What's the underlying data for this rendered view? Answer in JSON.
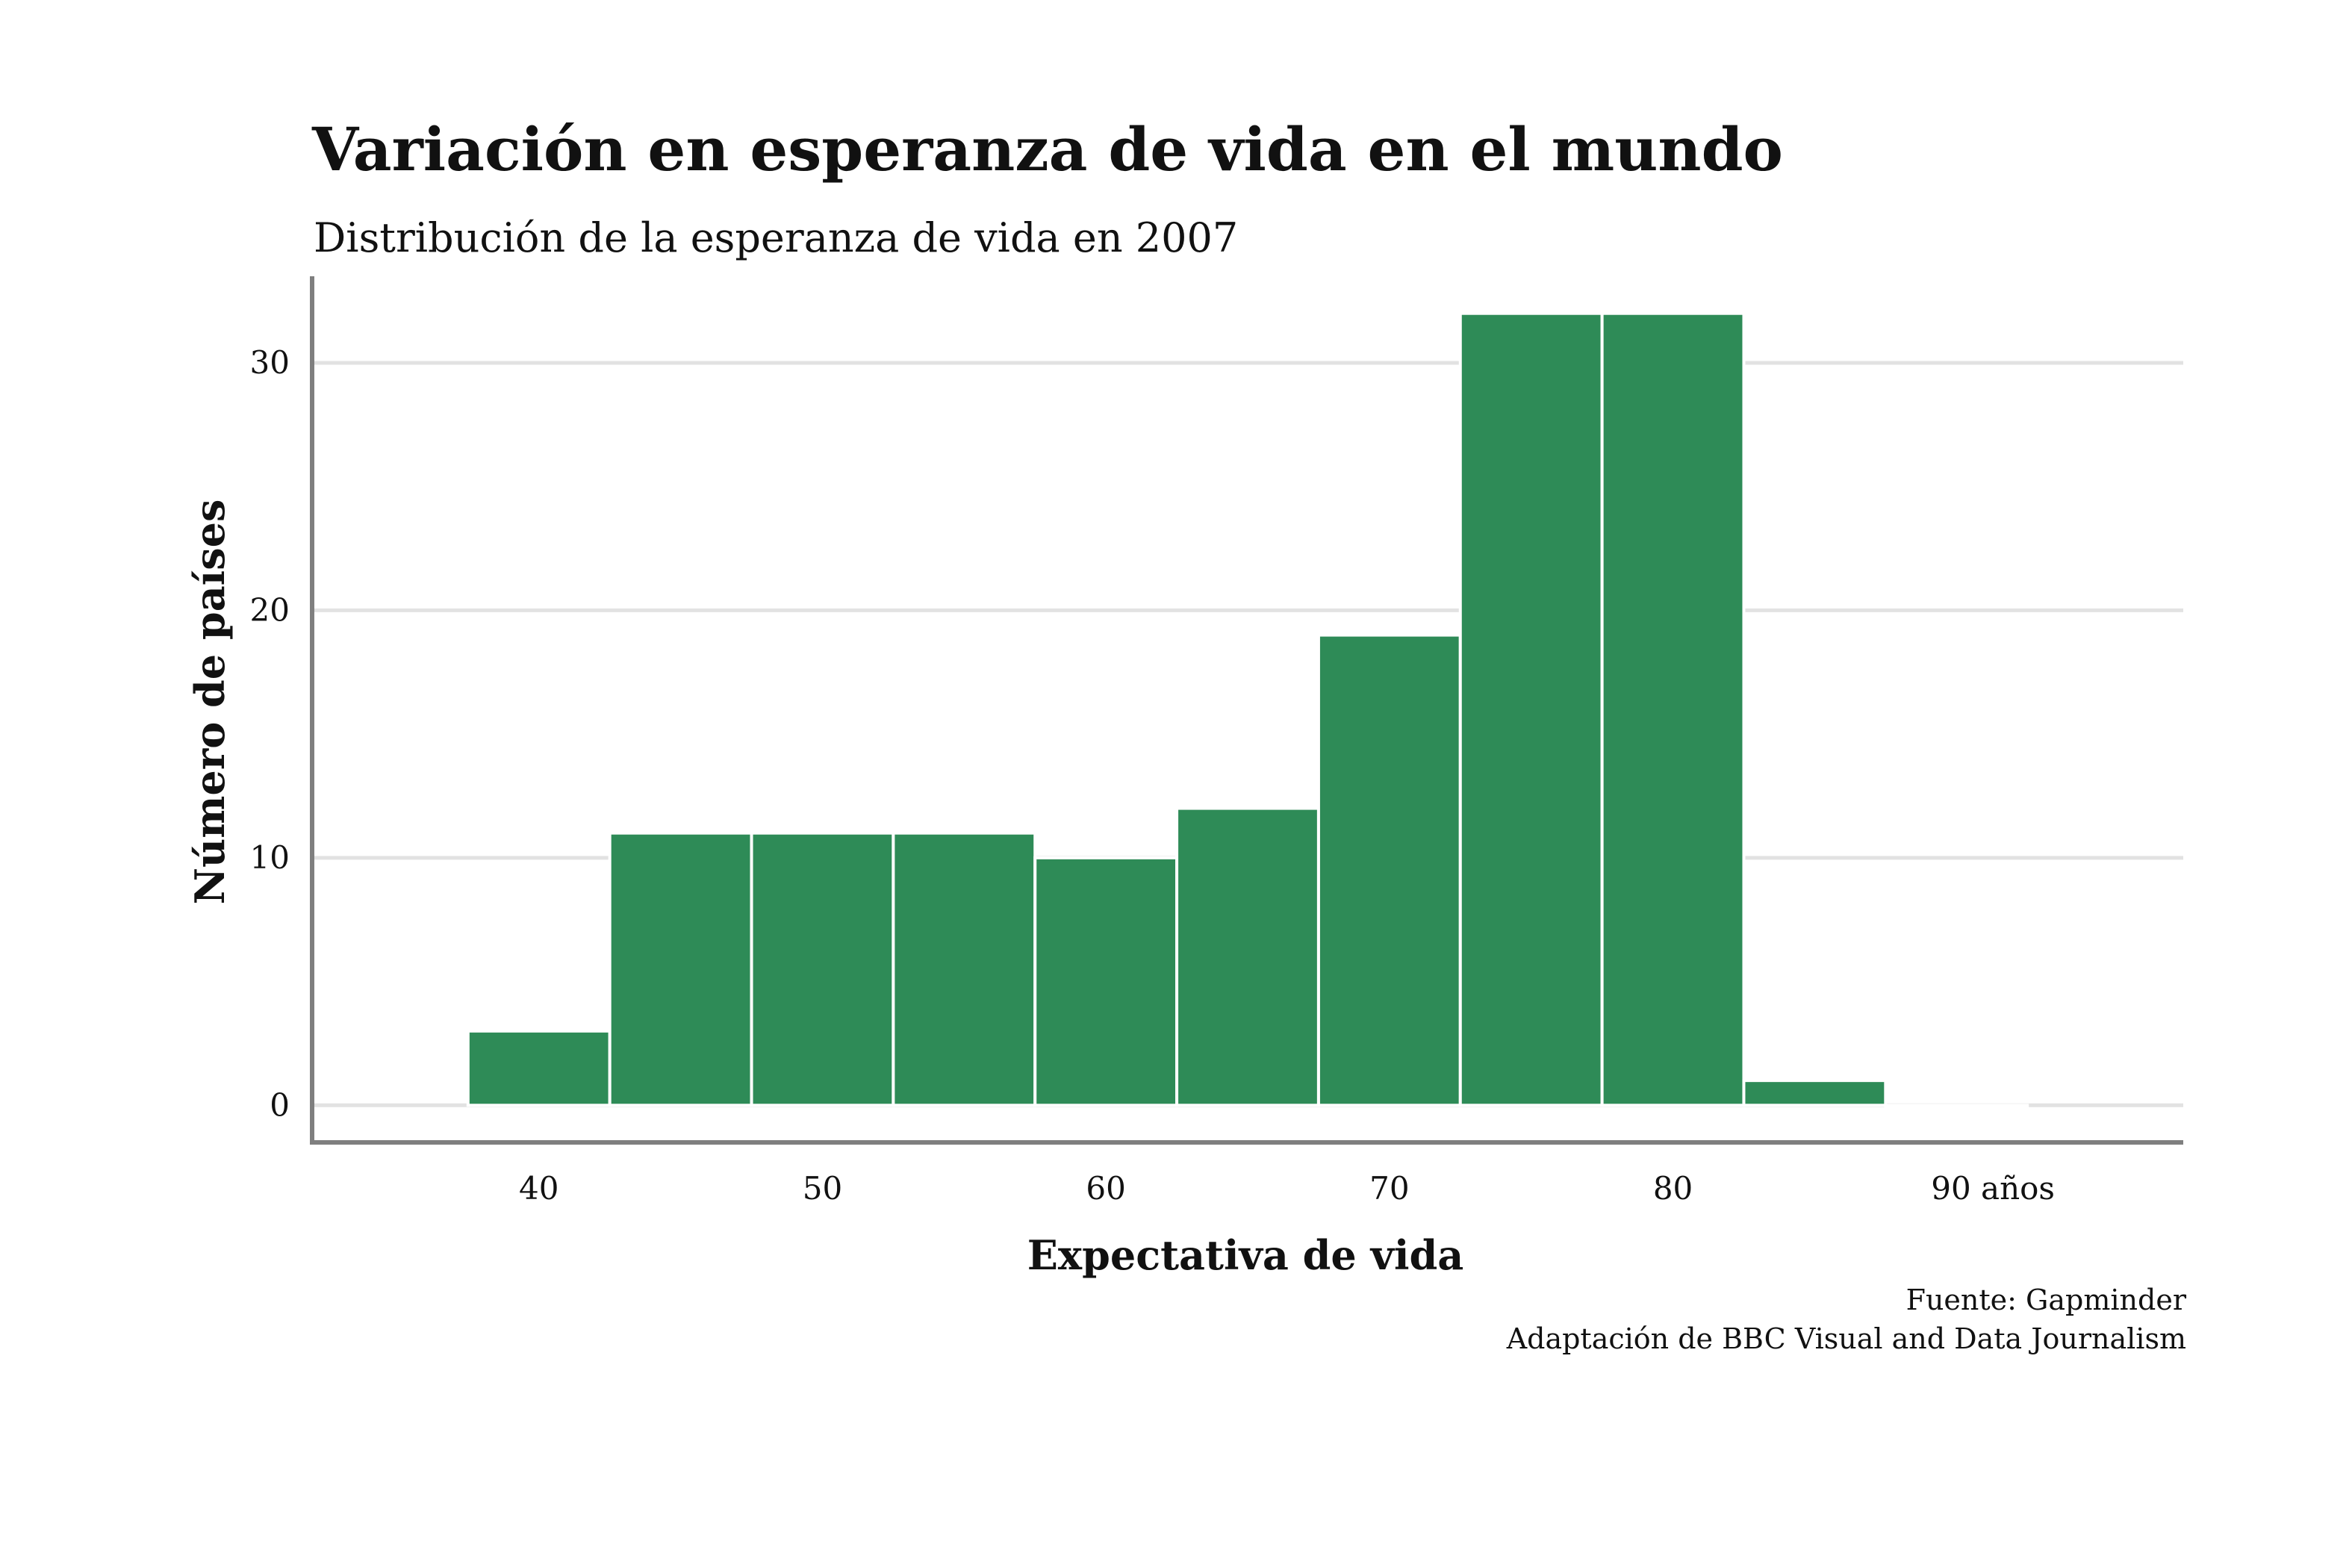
{
  "colors": {
    "bar": "#2e8b57",
    "bar_edge": "#ffffff",
    "grid": "#e2e2e2",
    "axis": "#7f7f7f",
    "text": "#111111"
  },
  "chart_data": {
    "type": "bar",
    "title": "Variación en esperanza de vida en el mundo",
    "subtitle": "Distribución de la esperanza de vida en 2007",
    "xlabel": "Expectativa de vida",
    "ylabel": "Número de países",
    "xlim": [
      32,
      98
    ],
    "ylim": [
      -1.5,
      33.5
    ],
    "xticks": [
      {
        "value": 40,
        "label": "40"
      },
      {
        "value": 50,
        "label": "50"
      },
      {
        "value": 60,
        "label": "60"
      },
      {
        "value": 70,
        "label": "70"
      },
      {
        "value": 80,
        "label": "80"
      },
      {
        "value": 90,
        "label": "90 años"
      }
    ],
    "yticks": [
      {
        "value": 0,
        "label": "0"
      },
      {
        "value": 10,
        "label": "10"
      },
      {
        "value": 20,
        "label": "20"
      },
      {
        "value": 30,
        "label": "30"
      }
    ],
    "grid": "horizontal",
    "bins": [
      {
        "start": 37.5,
        "end": 42.5,
        "count": 3
      },
      {
        "start": 42.5,
        "end": 47.5,
        "count": 11
      },
      {
        "start": 47.5,
        "end": 52.5,
        "count": 11
      },
      {
        "start": 52.5,
        "end": 57.5,
        "count": 11
      },
      {
        "start": 57.5,
        "end": 62.5,
        "count": 10
      },
      {
        "start": 62.5,
        "end": 67.5,
        "count": 12
      },
      {
        "start": 67.5,
        "end": 72.5,
        "count": 19
      },
      {
        "start": 72.5,
        "end": 77.5,
        "count": 32
      },
      {
        "start": 77.5,
        "end": 82.5,
        "count": 32
      },
      {
        "start": 82.5,
        "end": 87.5,
        "count": 1
      },
      {
        "start": 87.5,
        "end": 92.5,
        "count": 0
      }
    ]
  },
  "source": {
    "line1": "Fuente: Gapminder",
    "line2": "Adaptación de BBC Visual and Data Journalism"
  }
}
